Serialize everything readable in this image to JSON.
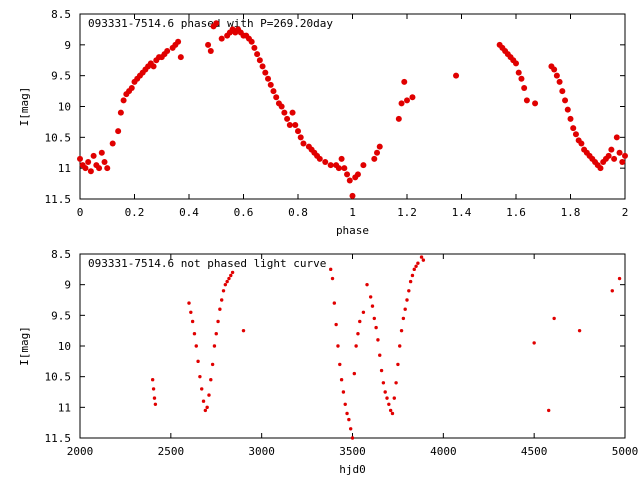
{
  "colors": {
    "points": "#e00000",
    "axes": "#000000",
    "background": "#ffffff"
  },
  "chart_data": [
    {
      "type": "scatter",
      "title": "093331-7514.6 phased with P=269.20day",
      "xlabel": "phase",
      "ylabel": "I[mag]",
      "xlim": [
        0,
        2
      ],
      "ylim": [
        8.5,
        11.5
      ],
      "y_inverted": true,
      "xticks": [
        "0",
        "0.2",
        "0.4",
        "0.6",
        "0.8",
        "1",
        "1.2",
        "1.4",
        "1.6",
        "1.8",
        "2"
      ],
      "yticks": [
        "8.5",
        "9",
        "9.5",
        "10",
        "10.5",
        "11",
        "11.5"
      ],
      "marker": "large-dot",
      "series": [
        {
          "x": [
            0.0,
            0.01,
            0.02,
            0.03,
            0.04,
            0.05,
            0.06,
            0.07,
            0.08,
            0.09,
            0.1,
            0.12,
            0.14,
            0.15,
            0.16,
            0.17,
            0.18,
            0.19,
            0.2,
            0.21,
            0.22,
            0.23,
            0.24,
            0.25,
            0.26,
            0.27,
            0.28,
            0.29,
            0.3,
            0.31,
            0.32,
            0.34,
            0.35,
            0.36,
            0.37,
            0.47,
            0.48,
            0.49,
            0.5,
            0.52,
            0.54,
            0.55,
            0.56,
            0.57,
            0.58,
            0.59,
            0.6,
            0.61,
            0.62,
            0.63,
            0.64,
            0.65,
            0.66,
            0.67,
            0.68,
            0.69,
            0.7,
            0.71,
            0.72,
            0.73,
            0.74,
            0.75,
            0.76,
            0.77,
            0.78,
            0.79,
            0.8,
            0.81,
            0.82,
            0.84,
            0.85,
            0.86,
            0.87,
            0.88,
            0.9,
            0.92,
            0.94,
            0.95,
            0.96,
            0.97,
            0.98,
            0.99,
            1.0,
            1.01,
            1.02,
            1.04,
            1.08,
            1.09,
            1.1,
            1.17,
            1.18,
            1.19,
            1.2,
            1.22,
            1.38,
            1.54,
            1.55,
            1.56,
            1.57,
            1.58,
            1.59,
            1.6,
            1.61,
            1.62,
            1.63,
            1.64,
            1.67,
            1.73,
            1.74,
            1.75,
            1.76,
            1.77,
            1.78,
            1.79,
            1.8,
            1.81,
            1.82,
            1.83,
            1.84,
            1.85,
            1.86,
            1.87,
            1.88,
            1.89,
            1.9,
            1.91,
            1.92,
            1.93,
            1.94,
            1.95,
            1.96,
            1.97,
            1.98,
            1.99,
            2.0
          ],
          "y": [
            10.85,
            10.95,
            11.0,
            10.9,
            11.05,
            10.8,
            10.95,
            11.0,
            10.75,
            10.9,
            11.0,
            10.6,
            10.4,
            10.1,
            9.9,
            9.8,
            9.75,
            9.7,
            9.6,
            9.55,
            9.5,
            9.45,
            9.4,
            9.35,
            9.3,
            9.35,
            9.25,
            9.2,
            9.2,
            9.15,
            9.1,
            9.05,
            9.0,
            8.95,
            9.2,
            9.0,
            9.1,
            8.7,
            8.65,
            8.9,
            8.85,
            8.8,
            8.75,
            8.8,
            8.75,
            8.8,
            8.85,
            8.85,
            8.9,
            8.95,
            9.05,
            9.15,
            9.25,
            9.35,
            9.45,
            9.55,
            9.65,
            9.75,
            9.85,
            9.95,
            10.0,
            10.1,
            10.2,
            10.3,
            10.1,
            10.3,
            10.4,
            10.5,
            10.6,
            10.65,
            10.7,
            10.75,
            10.8,
            10.85,
            10.9,
            10.95,
            10.95,
            11.0,
            10.85,
            11.0,
            11.1,
            11.2,
            11.45,
            11.15,
            11.1,
            10.95,
            10.85,
            10.75,
            10.65,
            10.2,
            9.95,
            9.6,
            9.9,
            9.85,
            9.5,
            9.0,
            9.05,
            9.1,
            9.15,
            9.2,
            9.25,
            9.3,
            9.45,
            9.55,
            9.7,
            9.9,
            9.95,
            9.35,
            9.4,
            9.5,
            9.6,
            9.75,
            9.9,
            10.05,
            10.2,
            10.35,
            10.45,
            10.55,
            10.6,
            10.7,
            10.75,
            10.8,
            10.85,
            10.9,
            10.95,
            11.0,
            10.9,
            10.85,
            10.8,
            10.7,
            10.85,
            10.5,
            10.75,
            10.9,
            10.8
          ]
        }
      ]
    },
    {
      "type": "scatter",
      "title": "093331-7514.6 not phased light curve",
      "xlabel": "hjd0",
      "ylabel": "I[mag]",
      "xlim": [
        2000,
        5000
      ],
      "ylim": [
        8.5,
        11.5
      ],
      "y_inverted": true,
      "xticks": [
        "2000",
        "2500",
        "3000",
        "3500",
        "4000",
        "4500",
        "5000"
      ],
      "yticks": [
        "8.5",
        "9",
        "9.5",
        "10",
        "10.5",
        "11",
        "11.5"
      ],
      "marker": "small-dot",
      "series": [
        {
          "x": [
            2400,
            2405,
            2410,
            2415,
            2600,
            2610,
            2620,
            2630,
            2640,
            2650,
            2660,
            2670,
            2680,
            2690,
            2700,
            2710,
            2720,
            2730,
            2740,
            2750,
            2760,
            2770,
            2780,
            2790,
            2800,
            2810,
            2820,
            2830,
            2840,
            2900,
            3380,
            3390,
            3400,
            3410,
            3420,
            3430,
            3440,
            3450,
            3460,
            3470,
            3480,
            3490,
            3500,
            3510,
            3520,
            3530,
            3540,
            3560,
            3580,
            3600,
            3610,
            3620,
            3630,
            3640,
            3650,
            3660,
            3670,
            3680,
            3690,
            3700,
            3710,
            3720,
            3730,
            3740,
            3750,
            3760,
            3770,
            3780,
            3790,
            3800,
            3810,
            3820,
            3830,
            3840,
            3850,
            3860,
            3880,
            3890,
            4500,
            4580,
            4610,
            4750,
            4930,
            4970
          ],
          "y": [
            10.55,
            10.7,
            10.85,
            10.95,
            9.3,
            9.45,
            9.6,
            9.8,
            10.0,
            10.25,
            10.5,
            10.7,
            10.9,
            11.05,
            11.0,
            10.8,
            10.55,
            10.3,
            10.0,
            9.8,
            9.6,
            9.4,
            9.25,
            9.1,
            9.0,
            8.95,
            8.9,
            8.85,
            8.8,
            9.75,
            8.75,
            8.9,
            9.3,
            9.65,
            10.0,
            10.3,
            10.55,
            10.75,
            10.95,
            11.1,
            11.2,
            11.35,
            11.5,
            10.45,
            10.0,
            9.8,
            9.6,
            9.45,
            9.0,
            9.2,
            9.35,
            9.55,
            9.7,
            9.9,
            10.15,
            10.4,
            10.6,
            10.75,
            10.85,
            10.95,
            11.05,
            11.1,
            10.85,
            10.6,
            10.3,
            10.0,
            9.75,
            9.55,
            9.4,
            9.25,
            9.1,
            8.95,
            8.85,
            8.75,
            8.7,
            8.65,
            8.55,
            8.6,
            9.95,
            11.05,
            9.55,
            9.75,
            9.1,
            8.9
          ]
        }
      ]
    }
  ]
}
